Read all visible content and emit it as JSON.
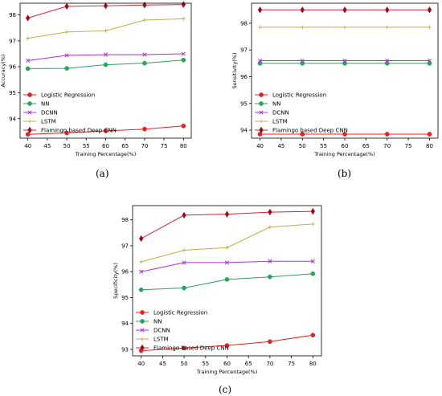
{
  "captions": [
    "(a)",
    "(b)",
    "(c)"
  ],
  "chart_data": [
    {
      "type": "line",
      "xlabel": "Training Percentage(%)",
      "ylabel": "Accuracy(%)",
      "x": [
        40,
        50,
        60,
        70,
        80
      ],
      "xlim": [
        38,
        82
      ],
      "ylim": [
        93.25,
        98.45
      ],
      "yticks": [
        94,
        95,
        96,
        97,
        98
      ],
      "legend": "lower-left",
      "series": [
        {
          "name": "Logistic Regression",
          "color": "#e8201e",
          "marker": "circle",
          "values": [
            93.4,
            93.45,
            93.53,
            93.6,
            93.72
          ]
        },
        {
          "name": "NN",
          "color": "#2ca25f",
          "marker": "circle",
          "values": [
            95.93,
            95.94,
            96.08,
            96.14,
            96.26
          ]
        },
        {
          "name": "DCNN",
          "color": "#b030d8",
          "marker": "x",
          "values": [
            96.24,
            96.44,
            96.47,
            96.47,
            96.5
          ]
        },
        {
          "name": "LSTM",
          "color": "#bcb04a",
          "marker": "plus",
          "values": [
            97.1,
            97.34,
            97.39,
            97.8,
            97.85
          ]
        },
        {
          "name": "Flamingo based Deep CNN",
          "color": "#d8243a",
          "marker": "diamond",
          "values": [
            97.88,
            98.33,
            98.35,
            98.38,
            98.4
          ]
        }
      ]
    },
    {
      "type": "line",
      "xlabel": "Training Percentage(%)",
      "ylabel": "Sensitivity(%)",
      "x": [
        40,
        50,
        60,
        70,
        80
      ],
      "xlim": [
        38,
        82
      ],
      "ylim": [
        93.7,
        98.75
      ],
      "yticks": [
        94,
        95,
        96,
        97,
        98
      ],
      "legend": "lower-left",
      "series": [
        {
          "name": "Logistic Regression",
          "color": "#e8201e",
          "marker": "circle",
          "values": [
            93.85,
            93.85,
            93.85,
            93.85,
            93.85
          ]
        },
        {
          "name": "NN",
          "color": "#2ca25f",
          "marker": "circle",
          "values": [
            96.5,
            96.5,
            96.5,
            96.5,
            96.5
          ]
        },
        {
          "name": "DCNN",
          "color": "#b030d8",
          "marker": "x",
          "values": [
            96.6,
            96.6,
            96.6,
            96.6,
            96.6
          ]
        },
        {
          "name": "LSTM",
          "color": "#bcb04a",
          "marker": "plus",
          "values": [
            97.85,
            97.85,
            97.85,
            97.85,
            97.85
          ]
        },
        {
          "name": "Flamingo based Deep CNN",
          "color": "#d8243a",
          "marker": "diamond",
          "values": [
            98.5,
            98.5,
            98.5,
            98.5,
            98.5
          ]
        }
      ]
    },
    {
      "type": "line",
      "xlabel": "Training Percentage(%)",
      "ylabel": "Specificity(%)",
      "x": [
        40,
        50,
        60,
        70,
        80
      ],
      "xlim": [
        38,
        82
      ],
      "ylim": [
        92.75,
        98.55
      ],
      "yticks": [
        93,
        94,
        95,
        96,
        97,
        98
      ],
      "legend": "lower-left",
      "series": [
        {
          "name": "Logistic Regression",
          "color": "#e8201e",
          "marker": "circle",
          "values": [
            92.95,
            93.05,
            93.15,
            93.3,
            93.55
          ]
        },
        {
          "name": "NN",
          "color": "#2ca25f",
          "marker": "circle",
          "values": [
            95.3,
            95.37,
            95.7,
            95.8,
            95.92
          ]
        },
        {
          "name": "DCNN",
          "color": "#b030d8",
          "marker": "x",
          "values": [
            96.0,
            96.35,
            96.35,
            96.4,
            96.4
          ]
        },
        {
          "name": "LSTM",
          "color": "#bcb04a",
          "marker": "plus",
          "values": [
            96.38,
            96.83,
            96.93,
            97.72,
            97.84
          ]
        },
        {
          "name": "Flamingo based Deep CNN",
          "color": "#d8243a",
          "marker": "diamond",
          "values": [
            97.28,
            98.18,
            98.22,
            98.3,
            98.33
          ]
        }
      ]
    }
  ]
}
